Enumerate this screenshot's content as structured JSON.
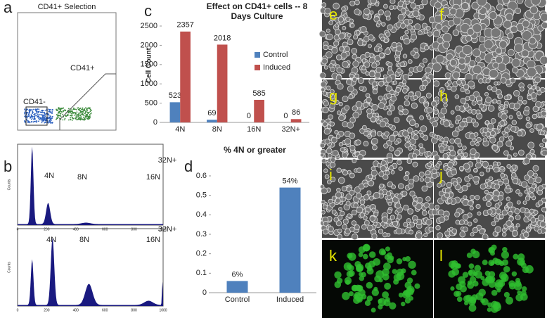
{
  "panel_labels": [
    "a",
    "b",
    "c",
    "d",
    "e",
    "f",
    "g",
    "h",
    "i",
    "j",
    "k",
    "l"
  ],
  "flow_plot": {
    "title": "CD41+ Selection",
    "gates": [
      "CD41+",
      "CD41-"
    ]
  },
  "histograms": [
    {
      "labels": [
        "4N",
        "8N",
        "16N",
        "32N+"
      ],
      "xticks": [
        0,
        200,
        400,
        600,
        800,
        1000
      ],
      "ylabel": "Counts"
    },
    {
      "labels": [
        "4N",
        "8N",
        "16N",
        "32N+"
      ],
      "xticks": [
        0,
        200,
        400,
        600,
        800,
        1000
      ],
      "ylabel": "Counts"
    }
  ],
  "chart_data": [
    {
      "type": "bar",
      "title": "Effect on CD41+ cells -- 8 Days Culture",
      "ylabel": "Cell Count",
      "categories": [
        "4N",
        "8N",
        "16N",
        "32N+"
      ],
      "series": [
        {
          "name": "Control",
          "color": "#4f81bd",
          "values": [
            523,
            69,
            0,
            0
          ]
        },
        {
          "name": "Induced",
          "color": "#c0504d",
          "values": [
            2357,
            2018,
            585,
            86
          ]
        }
      ],
      "ylim": [
        0,
        2500
      ],
      "yticks": [
        0,
        500,
        1000,
        1500,
        2000,
        2500
      ],
      "legend": "right"
    },
    {
      "type": "bar",
      "title": "% 4N or greater",
      "categories": [
        "Control",
        "Induced"
      ],
      "values": [
        0.06,
        0.54
      ],
      "value_labels": [
        "6%",
        "54%"
      ],
      "color": "#4f81bd",
      "ylim": [
        0,
        0.6
      ],
      "yticks": [
        0,
        0.1,
        0.2,
        0.3,
        0.4,
        0.5,
        0.6
      ]
    }
  ]
}
